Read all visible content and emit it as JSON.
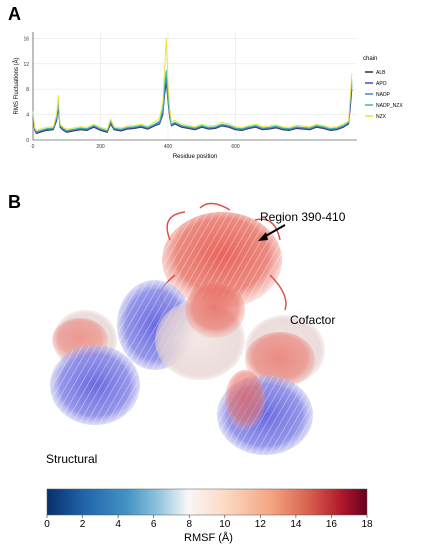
{
  "panel_a_label": "A",
  "panel_b_label": "B",
  "chart_data": {
    "type": "line",
    "title": "",
    "xlabel": "Residue position",
    "ylabel": "RMS Fluctuations (Å)",
    "xlim": [
      0,
      960
    ],
    "ylim": [
      0,
      17
    ],
    "x_ticks": [
      0,
      200,
      400,
      600
    ],
    "y_ticks": [
      0,
      4,
      8,
      12,
      16
    ],
    "grid": true,
    "legend_title": "chain",
    "legend_position": "right",
    "x": [
      0,
      5,
      10,
      20,
      40,
      60,
      70,
      75,
      80,
      90,
      100,
      120,
      140,
      160,
      180,
      200,
      220,
      230,
      240,
      260,
      280,
      300,
      320,
      340,
      360,
      375,
      385,
      390,
      395,
      400,
      405,
      410,
      420,
      440,
      460,
      480,
      500,
      520,
      540,
      560,
      580,
      600,
      620,
      640,
      660,
      680,
      700,
      720,
      740,
      760,
      780,
      800,
      820,
      840,
      860,
      880,
      900,
      920,
      935,
      940,
      945
    ],
    "series": [
      {
        "name": "ALB",
        "color": "#2d2d4a",
        "values": [
          3.5,
          1.5,
          1.0,
          1.2,
          1.5,
          1.6,
          3.0,
          5.0,
          2.0,
          1.5,
          1.2,
          1.4,
          1.6,
          1.5,
          2.0,
          1.5,
          1.2,
          2.5,
          1.6,
          1.4,
          1.7,
          1.8,
          2.0,
          1.7,
          2.2,
          2.5,
          4.0,
          7.0,
          9.0,
          6.0,
          3.5,
          2.2,
          2.5,
          2.0,
          1.8,
          1.6,
          2.0,
          1.7,
          1.8,
          2.2,
          2.0,
          1.6,
          1.5,
          1.8,
          2.0,
          1.6,
          1.7,
          1.9,
          1.6,
          1.5,
          1.8,
          1.7,
          1.6,
          2.0,
          1.8,
          1.5,
          1.6,
          2.0,
          2.5,
          5.0,
          8.0
        ]
      },
      {
        "name": "APO",
        "color": "#4a4ac8",
        "values": [
          3.6,
          1.6,
          1.1,
          1.3,
          1.6,
          1.7,
          3.2,
          5.5,
          2.1,
          1.6,
          1.3,
          1.5,
          1.7,
          1.6,
          2.1,
          1.6,
          1.3,
          2.7,
          1.7,
          1.5,
          1.8,
          1.9,
          2.1,
          1.8,
          2.3,
          2.6,
          4.2,
          7.5,
          9.5,
          6.3,
          3.6,
          2.3,
          2.6,
          2.1,
          1.9,
          1.7,
          2.1,
          1.8,
          1.9,
          2.3,
          2.1,
          1.7,
          1.6,
          1.9,
          2.1,
          1.7,
          1.8,
          2.0,
          1.7,
          1.6,
          1.9,
          1.8,
          1.7,
          2.1,
          1.9,
          1.6,
          1.7,
          2.1,
          2.6,
          5.5,
          8.5
        ]
      },
      {
        "name": "NADP",
        "color": "#3a8fbf",
        "values": [
          3.8,
          1.7,
          1.2,
          1.4,
          1.7,
          1.8,
          3.4,
          5.8,
          2.2,
          1.7,
          1.4,
          1.6,
          1.8,
          1.7,
          2.2,
          1.7,
          1.4,
          2.8,
          1.8,
          1.6,
          1.9,
          2.0,
          2.2,
          1.9,
          2.4,
          2.8,
          4.5,
          8.0,
          10.0,
          6.5,
          3.8,
          2.4,
          2.7,
          2.2,
          2.0,
          1.8,
          2.2,
          1.9,
          2.0,
          2.4,
          2.2,
          1.8,
          1.7,
          2.0,
          2.2,
          1.8,
          1.9,
          2.1,
          1.8,
          1.7,
          2.0,
          1.9,
          1.8,
          2.2,
          2.0,
          1.7,
          1.8,
          2.2,
          2.7,
          6.0,
          9.0
        ]
      },
      {
        "name": "NADP_NZX",
        "color": "#3dbf9a",
        "values": [
          4.0,
          1.8,
          1.3,
          1.5,
          1.8,
          1.9,
          3.6,
          6.0,
          2.3,
          1.8,
          1.5,
          1.7,
          1.9,
          1.8,
          2.3,
          1.8,
          1.5,
          3.0,
          1.9,
          1.7,
          2.0,
          2.1,
          2.3,
          2.0,
          2.5,
          3.0,
          5.0,
          9.0,
          11.0,
          7.0,
          4.0,
          2.5,
          2.8,
          2.3,
          2.1,
          1.9,
          2.3,
          2.0,
          2.1,
          2.5,
          2.3,
          1.9,
          1.8,
          2.1,
          2.3,
          1.9,
          2.0,
          2.2,
          1.9,
          1.8,
          2.1,
          2.0,
          1.9,
          2.3,
          2.1,
          1.8,
          1.9,
          2.3,
          2.8,
          6.5,
          9.5
        ]
      },
      {
        "name": "NZX",
        "color": "#e8e040",
        "values": [
          4.5,
          2.0,
          1.5,
          1.7,
          2.0,
          2.1,
          4.0,
          7.0,
          2.5,
          2.0,
          1.7,
          1.9,
          2.1,
          2.0,
          2.5,
          2.0,
          1.7,
          3.3,
          2.1,
          1.9,
          2.2,
          2.3,
          2.5,
          2.2,
          2.8,
          3.5,
          6.0,
          11.0,
          16.0,
          9.0,
          5.0,
          2.8,
          3.1,
          2.5,
          2.3,
          2.1,
          2.5,
          2.2,
          2.3,
          2.8,
          2.5,
          2.1,
          2.0,
          2.3,
          2.5,
          2.1,
          2.2,
          2.4,
          2.1,
          2.0,
          2.3,
          2.2,
          2.1,
          2.5,
          2.3,
          2.0,
          2.1,
          2.5,
          3.0,
          7.0,
          10.5
        ]
      }
    ]
  },
  "structure_figure": {
    "annotation_region": "Region 390-410",
    "label_cofactor": "Cofactor",
    "label_structural": "Structural"
  },
  "colorbar": {
    "label": "RMSF (Å)",
    "ticks": [
      "0",
      "2",
      "4",
      "6",
      "8",
      "10",
      "12",
      "14",
      "16",
      "18"
    ],
    "min": 0,
    "max": 18
  }
}
